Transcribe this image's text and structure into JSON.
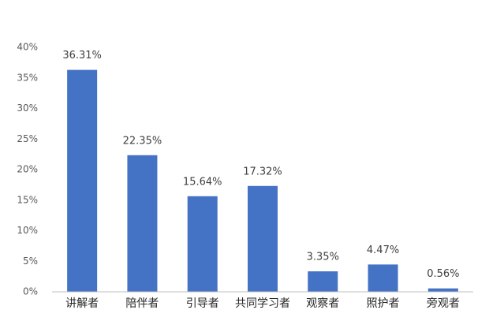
{
  "chart_data": {
    "type": "bar",
    "categories": [
      "讲解者",
      "陪伴者",
      "引导者",
      "共同学习者",
      "观察者",
      "照护者",
      "旁观者"
    ],
    "values": [
      36.31,
      22.35,
      15.64,
      17.32,
      3.35,
      4.47,
      0.56
    ],
    "value_labels": [
      "36.31%",
      "22.35%",
      "15.64%",
      "17.32%",
      "3.35%",
      "4.47%",
      "0.56%"
    ],
    "color": "#4472c4",
    "ylim": [
      0,
      40
    ],
    "yticks": [
      {
        "value": 0,
        "label": "0%"
      },
      {
        "value": 5,
        "label": "5%"
      },
      {
        "value": 10,
        "label": "10%"
      },
      {
        "value": 15,
        "label": "15%"
      },
      {
        "value": 20,
        "label": "20%"
      },
      {
        "value": 25,
        "label": "25%"
      },
      {
        "value": 30,
        "label": "30%"
      },
      {
        "value": 35,
        "label": "35%"
      },
      {
        "value": 40,
        "label": "40%"
      }
    ],
    "grid": false
  }
}
